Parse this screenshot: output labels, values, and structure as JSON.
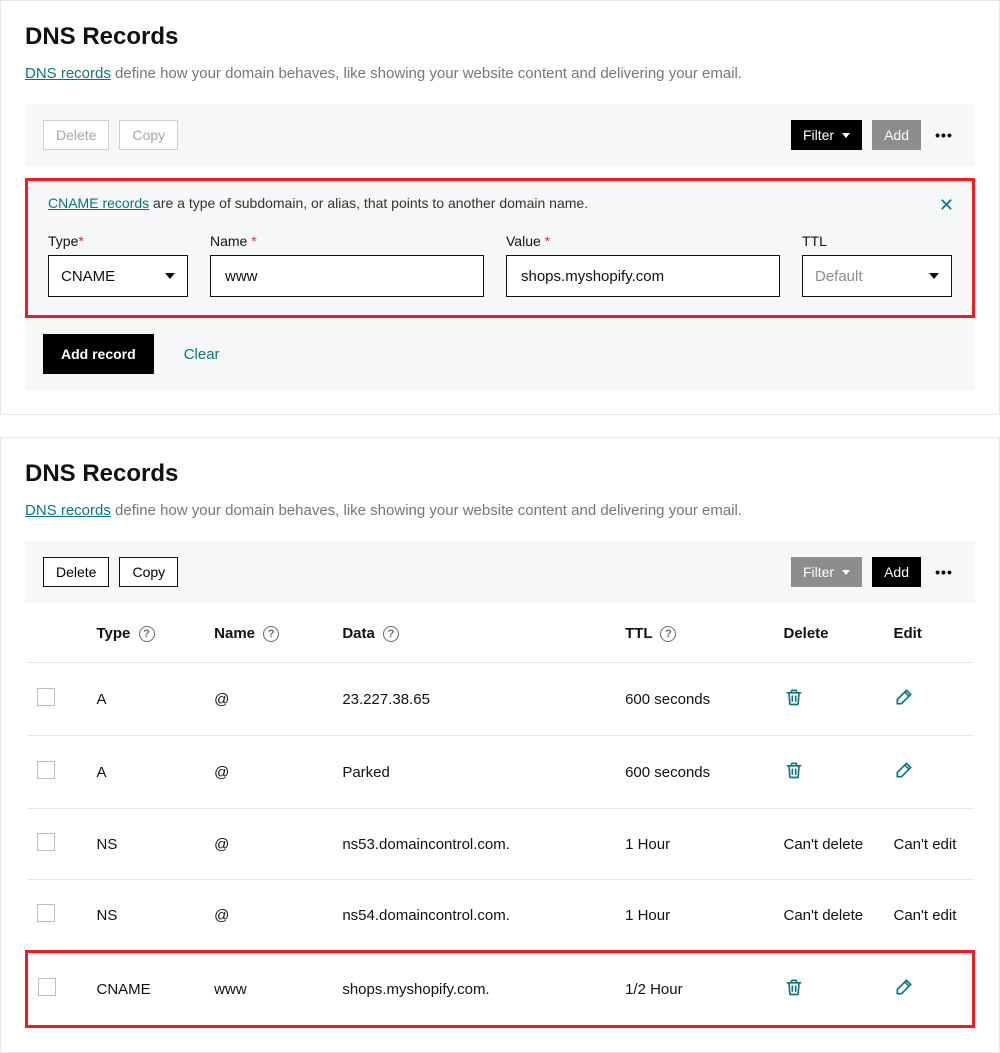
{
  "colors": {
    "highlight_border": "#ef1c23",
    "teal": "#0b757a",
    "toolbar_bg": "#f5f7f8",
    "muted": "#8d8d8d",
    "black": "#000000"
  },
  "top": {
    "heading": "DNS Records",
    "subtitle_link": "DNS records",
    "subtitle_rest": " define how your domain behaves, like showing your website content and delivering your email.",
    "toolbar": {
      "delete": "Delete",
      "copy": "Copy",
      "filter": "Filter",
      "add": "Add"
    },
    "cname_box": {
      "link": "CNAME records",
      "rest": " are a type of subdomain, or alias, that points to another domain name.",
      "labels": {
        "type": "Type",
        "name": "Name",
        "value": "Value",
        "ttl": "TTL"
      },
      "values": {
        "type": "CNAME",
        "name": "www",
        "value": "shops.myshopify.com",
        "ttl": "Default"
      }
    },
    "actions": {
      "add_record": "Add record",
      "clear": "Clear"
    }
  },
  "bottom": {
    "heading": "DNS Records",
    "subtitle_link": "DNS records",
    "subtitle_rest": " define how your domain behaves, like showing your website content and delivering your email.",
    "toolbar": {
      "delete": "Delete",
      "copy": "Copy",
      "filter": "Filter",
      "add": "Add"
    },
    "columns": {
      "type": "Type",
      "name": "Name",
      "data": "Data",
      "ttl": "TTL",
      "delete": "Delete",
      "edit": "Edit"
    },
    "cant_delete": "Can't delete",
    "cant_edit": "Can't edit",
    "rows": [
      {
        "type": "A",
        "name": "@",
        "data": "23.227.38.65",
        "ttl": "600 seconds",
        "locked": false,
        "highlight": false
      },
      {
        "type": "A",
        "name": "@",
        "data": "Parked",
        "ttl": "600 seconds",
        "locked": false,
        "highlight": false
      },
      {
        "type": "NS",
        "name": "@",
        "data": "ns53.domaincontrol.com.",
        "ttl": "1 Hour",
        "locked": true,
        "highlight": false
      },
      {
        "type": "NS",
        "name": "@",
        "data": "ns54.domaincontrol.com.",
        "ttl": "1 Hour",
        "locked": true,
        "highlight": false
      },
      {
        "type": "CNAME",
        "name": "www",
        "data": "shops.myshopify.com.",
        "ttl": "1/2 Hour",
        "locked": false,
        "highlight": true
      }
    ]
  }
}
